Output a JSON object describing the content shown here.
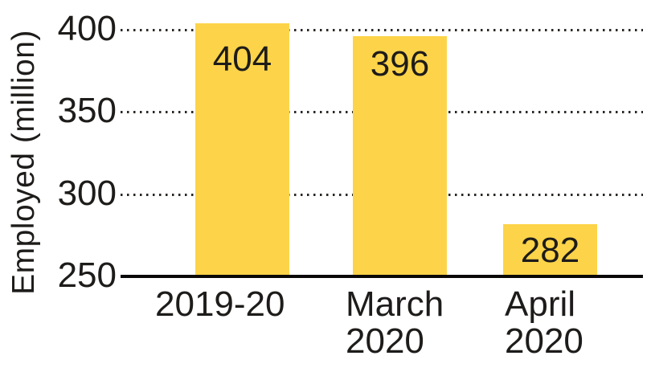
{
  "chart_data": {
    "type": "bar",
    "title": "",
    "ylabel": "Employed (million)",
    "xlabel": "",
    "categories": [
      [
        "2019-20"
      ],
      [
        "March",
        "2020"
      ],
      [
        "April",
        "2020"
      ]
    ],
    "values": [
      404,
      396,
      282
    ],
    "data_labels": [
      "404",
      "396",
      "282"
    ],
    "yticks": [
      250,
      300,
      350,
      400
    ],
    "ylim": [
      250,
      415
    ],
    "grid": "horizontal-dotted",
    "baseline_value": 250,
    "legend_position": "none",
    "colors": {
      "bar": "#FDD449",
      "ink": "#1E1C1A",
      "baseline": "#0A0908",
      "gridline": "#2A2724",
      "background": "#FFFFFF"
    }
  }
}
